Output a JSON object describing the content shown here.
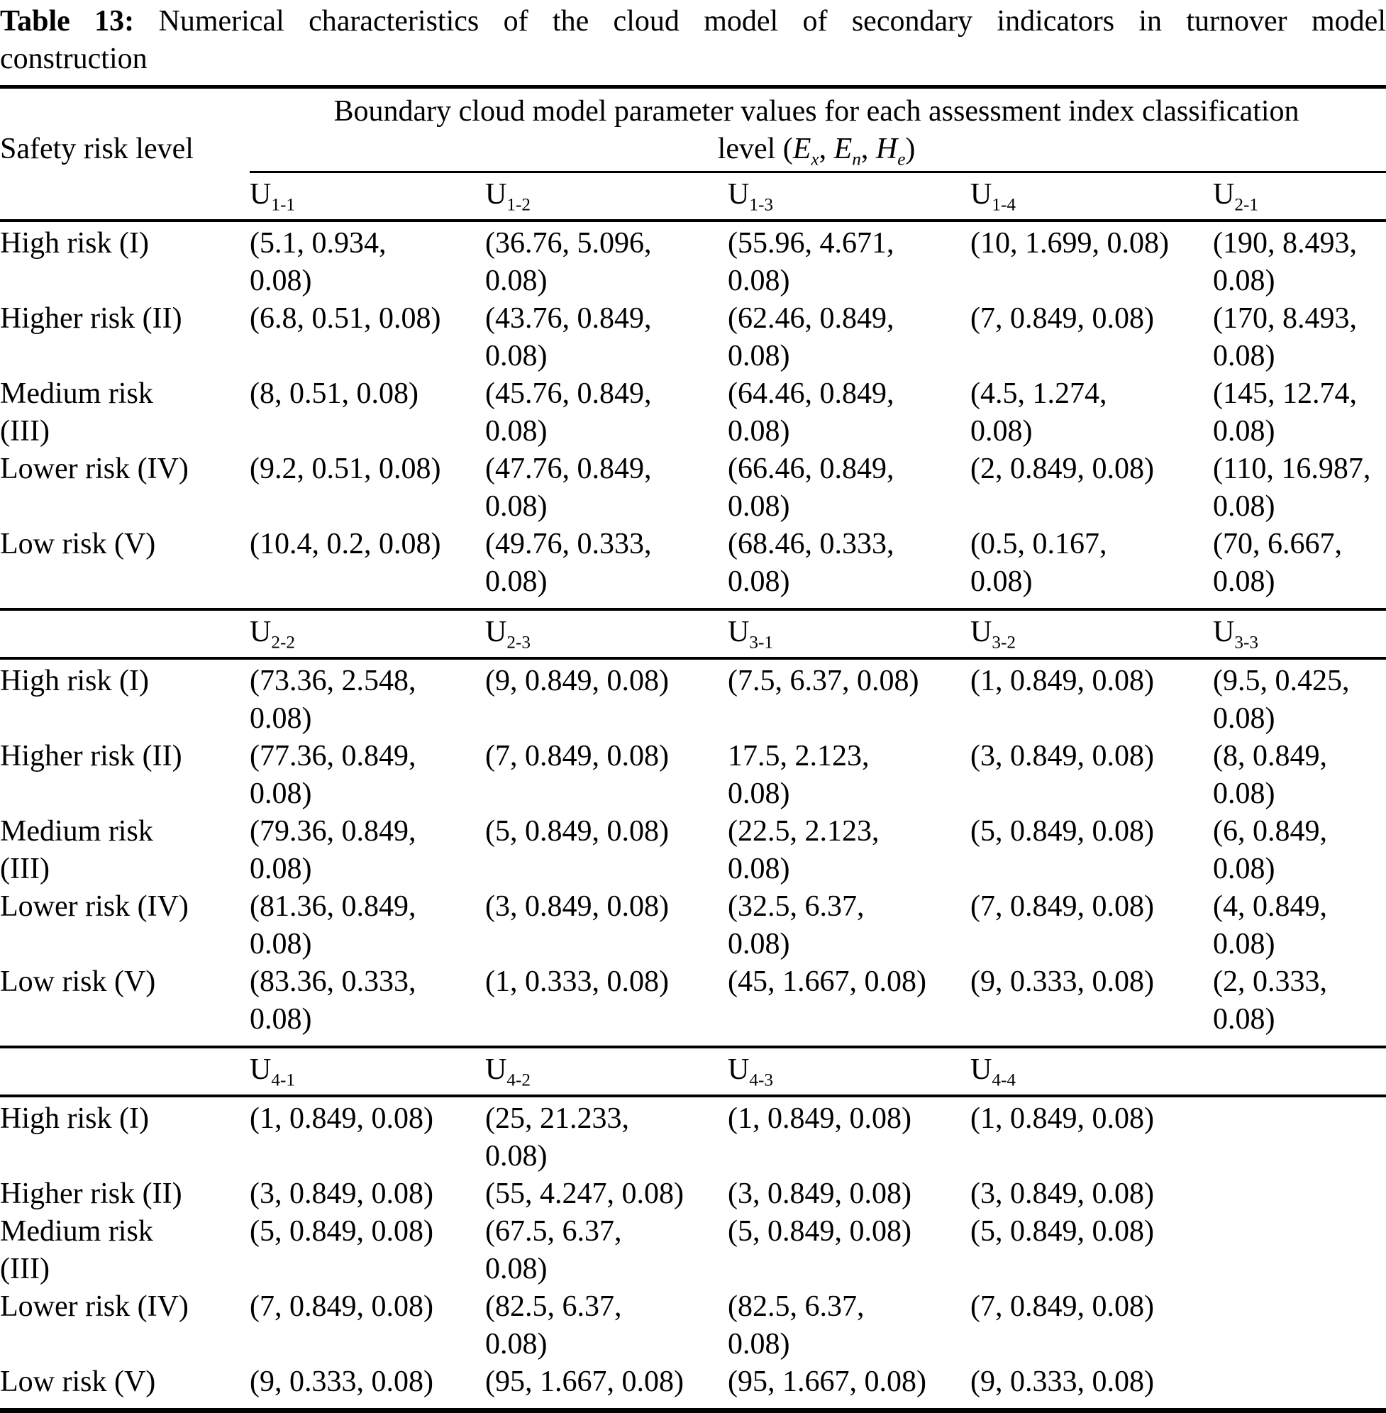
{
  "title": {
    "label": "Table 13:",
    "line1_rest": " Numerical characteristics of the cloud model of secondary indicators in turnover model",
    "line2": "construction"
  },
  "header": {
    "row_label": "Safety risk level",
    "span_line1": "Boundary cloud model parameter values for each assessment index classification",
    "span_line2_prefix": "level (",
    "vars": [
      {
        "base": "E",
        "sub": "x"
      },
      {
        "base": "E",
        "sub": "n"
      },
      {
        "base": "H",
        "sub": "e"
      }
    ],
    "sep": ", ",
    "span_line2_suffix": ")"
  },
  "sections": [
    {
      "columns": [
        {
          "base": "U",
          "sub": "1-1"
        },
        {
          "base": "U",
          "sub": "1-2"
        },
        {
          "base": "U",
          "sub": "1-3"
        },
        {
          "base": "U",
          "sub": "1-4"
        },
        {
          "base": "U",
          "sub": "2-1"
        }
      ],
      "rows": [
        {
          "label": "High risk (I)",
          "cells": [
            "(5.1, 0.934,\n0.08)",
            "(36.76, 5.096,\n0.08)",
            "(55.96, 4.671,\n0.08)",
            "(10, 1.699, 0.08)",
            "(190, 8.493,\n0.08)"
          ]
        },
        {
          "label": "Higher risk (II)",
          "cells": [
            "(6.8, 0.51, 0.08)",
            "(43.76, 0.849,\n0.08)",
            "(62.46, 0.849,\n0.08)",
            "(7, 0.849, 0.08)",
            "(170, 8.493,\n0.08)"
          ]
        },
        {
          "label": "Medium risk\n(III)",
          "cells": [
            "(8, 0.51, 0.08)",
            "(45.76, 0.849,\n0.08)",
            "(64.46, 0.849,\n0.08)",
            "(4.5, 1.274,\n0.08)",
            "(145, 12.74,\n0.08)"
          ]
        },
        {
          "label": "Lower risk (IV)",
          "cells": [
            "(9.2, 0.51, 0.08)",
            "(47.76, 0.849,\n0.08)",
            "(66.46, 0.849,\n0.08)",
            "(2, 0.849, 0.08)",
            "(110, 16.987,\n0.08)"
          ]
        },
        {
          "label": "Low risk (V)",
          "cells": [
            "(10.4, 0.2, 0.08)",
            "(49.76, 0.333,\n0.08)",
            "(68.46, 0.333,\n0.08)",
            "(0.5, 0.167,\n0.08)",
            "(70, 6.667,\n0.08)"
          ]
        }
      ]
    },
    {
      "columns": [
        {
          "base": "U",
          "sub": "2-2"
        },
        {
          "base": "U",
          "sub": "2-3"
        },
        {
          "base": "U",
          "sub": "3-1"
        },
        {
          "base": "U",
          "sub": "3-2"
        },
        {
          "base": "U",
          "sub": "3-3"
        }
      ],
      "rows": [
        {
          "label": "High risk (I)",
          "cells": [
            "(73.36, 2.548,\n0.08)",
            "(9, 0.849, 0.08)",
            "(7.5, 6.37, 0.08)",
            "(1, 0.849, 0.08)",
            "(9.5, 0.425,\n0.08)"
          ]
        },
        {
          "label": "Higher risk (II)",
          "cells": [
            "(77.36, 0.849,\n0.08)",
            "(7, 0.849, 0.08)",
            "17.5, 2.123,\n0.08)",
            "(3, 0.849, 0.08)",
            "(8, 0.849,\n0.08)"
          ]
        },
        {
          "label": "Medium risk\n(III)",
          "cells": [
            "(79.36, 0.849,\n0.08)",
            "(5, 0.849, 0.08)",
            "(22.5, 2.123,\n0.08)",
            "(5, 0.849, 0.08)",
            "(6, 0.849,\n0.08)"
          ]
        },
        {
          "label": "Lower risk (IV)",
          "cells": [
            "(81.36, 0.849,\n0.08)",
            "(3, 0.849, 0.08)",
            "(32.5, 6.37,\n0.08)",
            "(7, 0.849, 0.08)",
            "(4, 0.849,\n0.08)"
          ]
        },
        {
          "label": "Low risk (V)",
          "cells": [
            "(83.36, 0.333,\n0.08)",
            "(1, 0.333, 0.08)",
            "(45, 1.667, 0.08)",
            "(9, 0.333, 0.08)",
            "(2, 0.333,\n0.08)"
          ]
        }
      ]
    },
    {
      "columns": [
        {
          "base": "U",
          "sub": "4-1"
        },
        {
          "base": "U",
          "sub": "4-2"
        },
        {
          "base": "U",
          "sub": "4-3"
        },
        {
          "base": "U",
          "sub": "4-4"
        }
      ],
      "rows": [
        {
          "label": "High risk (I)",
          "cells": [
            "(1, 0.849, 0.08)",
            "(25, 21.233,\n0.08)",
            "(1, 0.849, 0.08)",
            "(1, 0.849, 0.08)",
            ""
          ]
        },
        {
          "label": "Higher risk (II)",
          "cells": [
            "(3, 0.849, 0.08)",
            "(55, 4.247, 0.08)",
            "(3, 0.849, 0.08)",
            "(3, 0.849, 0.08)",
            ""
          ]
        },
        {
          "label": "Medium risk\n(III)",
          "cells": [
            "(5, 0.849, 0.08)",
            "(67.5, 6.37,\n0.08)",
            "(5, 0.849, 0.08)",
            "(5, 0.849, 0.08)",
            ""
          ]
        },
        {
          "label": "Lower risk (IV)",
          "cells": [
            "(7, 0.849, 0.08)",
            "(82.5, 6.37,\n0.08)",
            "(82.5, 6.37,\n0.08)",
            "(7, 0.849, 0.08)",
            ""
          ]
        },
        {
          "label": "Low risk (V)",
          "cells": [
            "(9, 0.333, 0.08)",
            "(95, 1.667, 0.08)",
            "(95, 1.667, 0.08)",
            "(9, 0.333, 0.08)",
            ""
          ]
        }
      ]
    }
  ]
}
